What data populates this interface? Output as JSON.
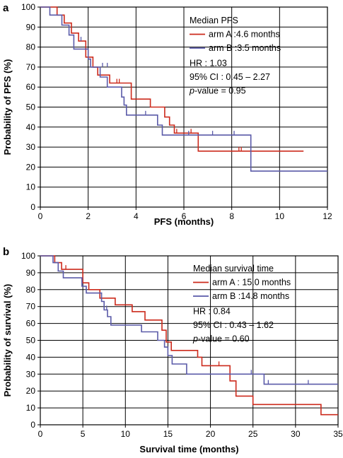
{
  "chart_data": [
    {
      "panel_label": "a",
      "type": "line",
      "step": true,
      "ylabel": "Probability of PFS (%)",
      "xlabel": "PFS (months)",
      "xlim": [
        0,
        12
      ],
      "ylim": [
        0,
        100
      ],
      "xticks": [
        0,
        2,
        4,
        6,
        8,
        10,
        12
      ],
      "yticks": [
        0,
        10,
        20,
        30,
        40,
        50,
        60,
        70,
        80,
        90,
        100
      ],
      "grid": true,
      "legend": {
        "title": "Median PFS",
        "placement": "top-right",
        "stats": [
          {
            "text": "HR : 1.03"
          },
          {
            "text": "95% CI : 0.45 – 2.27"
          },
          {
            "prefix": "p",
            "text": "-value = 0.95"
          }
        ]
      },
      "series": [
        {
          "name": "arm A :4.6 months",
          "color": "#cc2a1c",
          "points": [
            [
              0,
              100
            ],
            [
              0.7,
              100
            ],
            [
              0.7,
              96
            ],
            [
              1.0,
              96
            ],
            [
              1.0,
              92
            ],
            [
              1.3,
              92
            ],
            [
              1.3,
              87
            ],
            [
              1.6,
              87
            ],
            [
              1.6,
              83
            ],
            [
              1.9,
              83
            ],
            [
              1.9,
              75
            ],
            [
              2.2,
              75
            ],
            [
              2.2,
              70
            ],
            [
              2.4,
              70
            ],
            [
              2.4,
              66
            ],
            [
              2.9,
              66
            ],
            [
              2.9,
              62
            ],
            [
              3.8,
              62
            ],
            [
              3.8,
              54
            ],
            [
              4.6,
              54
            ],
            [
              4.6,
              50
            ],
            [
              5.2,
              50
            ],
            [
              5.2,
              45
            ],
            [
              5.4,
              45
            ],
            [
              5.4,
              41
            ],
            [
              5.6,
              41
            ],
            [
              5.6,
              37
            ],
            [
              6.6,
              37
            ],
            [
              6.6,
              28
            ],
            [
              11.0,
              28
            ]
          ],
          "censor": [
            [
              3.2,
              62
            ],
            [
              3.3,
              62
            ],
            [
              5.7,
              37
            ],
            [
              6.3,
              37
            ],
            [
              8.3,
              28
            ],
            [
              8.4,
              28
            ]
          ]
        },
        {
          "name": "arm B :3.5 months",
          "color": "#5a5aa8",
          "points": [
            [
              0,
              100
            ],
            [
              0.4,
              100
            ],
            [
              0.4,
              96
            ],
            [
              0.9,
              96
            ],
            [
              0.9,
              91
            ],
            [
              1.2,
              91
            ],
            [
              1.2,
              86
            ],
            [
              1.4,
              86
            ],
            [
              1.4,
              79
            ],
            [
              2.0,
              79
            ],
            [
              2.0,
              74
            ],
            [
              2.1,
              74
            ],
            [
              2.1,
              70
            ],
            [
              2.5,
              70
            ],
            [
              2.5,
              65
            ],
            [
              2.8,
              65
            ],
            [
              2.8,
              60
            ],
            [
              3.4,
              60
            ],
            [
              3.4,
              55
            ],
            [
              3.5,
              55
            ],
            [
              3.5,
              51
            ],
            [
              3.6,
              51
            ],
            [
              3.6,
              46
            ],
            [
              4.9,
              46
            ],
            [
              4.9,
              41
            ],
            [
              5.1,
              41
            ],
            [
              5.1,
              36
            ],
            [
              8.8,
              36
            ],
            [
              8.8,
              18
            ],
            [
              12.0,
              18
            ]
          ],
          "censor": [
            [
              1.7,
              83
            ],
            [
              2.6,
              70
            ],
            [
              2.8,
              70
            ],
            [
              4.4,
              46
            ],
            [
              6.2,
              36
            ],
            [
              7.2,
              36
            ],
            [
              8.1,
              36
            ]
          ]
        }
      ]
    },
    {
      "panel_label": "b",
      "type": "line",
      "step": true,
      "ylabel": "Probability of survival (%)",
      "xlabel": "Survival time (months)",
      "xlim": [
        0,
        35
      ],
      "ylim": [
        0,
        100
      ],
      "xticks": [
        0,
        5,
        10,
        15,
        20,
        25,
        30,
        35
      ],
      "yticks": [
        0,
        10,
        20,
        30,
        40,
        50,
        60,
        70,
        80,
        90,
        100
      ],
      "grid": true,
      "legend": {
        "title": "Median survival time",
        "placement": "top-right",
        "stats": [
          {
            "text": "HR : 0.84"
          },
          {
            "text": "95% CI : 0.43 – 1.62"
          },
          {
            "prefix": "p",
            "text": "-value = 0.60"
          }
        ]
      },
      "series": [
        {
          "name": "arm A : 15.0 months",
          "color": "#cc2a1c",
          "points": [
            [
              0,
              100
            ],
            [
              1.7,
              100
            ],
            [
              1.7,
              96
            ],
            [
              2.5,
              96
            ],
            [
              2.5,
              92
            ],
            [
              5.0,
              92
            ],
            [
              5.0,
              84
            ],
            [
              5.7,
              84
            ],
            [
              5.7,
              80
            ],
            [
              7.0,
              80
            ],
            [
              7.0,
              75
            ],
            [
              8.8,
              75
            ],
            [
              8.8,
              71
            ],
            [
              10.8,
              71
            ],
            [
              10.8,
              67
            ],
            [
              12.3,
              67
            ],
            [
              12.3,
              62
            ],
            [
              14.3,
              62
            ],
            [
              14.3,
              56
            ],
            [
              14.8,
              56
            ],
            [
              14.8,
              49
            ],
            [
              15.4,
              49
            ],
            [
              15.4,
              44
            ],
            [
              18.5,
              44
            ],
            [
              18.5,
              40
            ],
            [
              19.0,
              40
            ],
            [
              19.0,
              35
            ],
            [
              22.3,
              35
            ],
            [
              22.3,
              26
            ],
            [
              23.0,
              26
            ],
            [
              23.0,
              17
            ],
            [
              25.0,
              17
            ],
            [
              25.0,
              12
            ],
            [
              33.0,
              12
            ],
            [
              33.0,
              6
            ],
            [
              35.0,
              6
            ]
          ],
          "censor": [
            [
              3.0,
              92
            ],
            [
              21.0,
              35
            ]
          ]
        },
        {
          "name": "arm B :14.8 months",
          "color": "#5a5aa8",
          "points": [
            [
              0,
              100
            ],
            [
              1.5,
              100
            ],
            [
              1.5,
              96
            ],
            [
              2.1,
              96
            ],
            [
              2.1,
              91
            ],
            [
              2.7,
              91
            ],
            [
              2.7,
              87
            ],
            [
              4.9,
              87
            ],
            [
              4.9,
              82
            ],
            [
              5.4,
              82
            ],
            [
              5.4,
              78
            ],
            [
              7.2,
              78
            ],
            [
              7.2,
              73
            ],
            [
              7.5,
              73
            ],
            [
              7.5,
              68
            ],
            [
              7.9,
              68
            ],
            [
              7.9,
              64
            ],
            [
              8.3,
              64
            ],
            [
              8.3,
              59
            ],
            [
              11.9,
              59
            ],
            [
              11.9,
              55
            ],
            [
              13.8,
              55
            ],
            [
              13.8,
              50
            ],
            [
              14.6,
              50
            ],
            [
              14.6,
              46
            ],
            [
              15.0,
              46
            ],
            [
              15.0,
              41
            ],
            [
              15.5,
              41
            ],
            [
              15.5,
              36
            ],
            [
              17.2,
              36
            ],
            [
              17.2,
              30
            ],
            [
              26.3,
              30
            ],
            [
              26.3,
              24
            ],
            [
              35.0,
              24
            ]
          ],
          "censor": [
            [
              7.8,
              68
            ],
            [
              24.8,
              30
            ],
            [
              26.8,
              24
            ],
            [
              31.5,
              24
            ]
          ]
        }
      ]
    }
  ]
}
